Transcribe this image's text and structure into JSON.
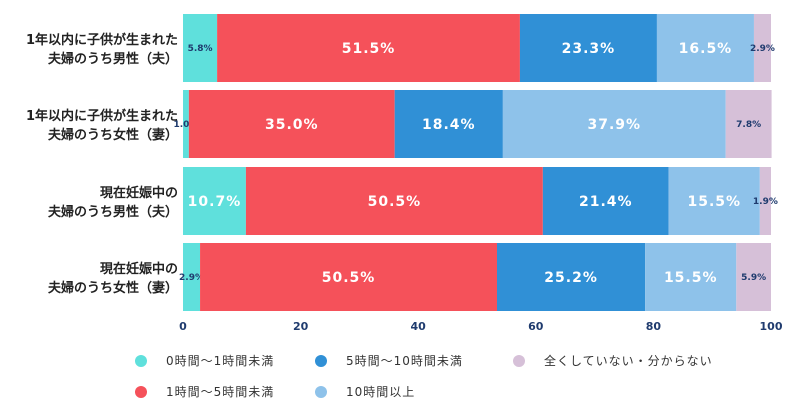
{
  "chart_data": {
    "type": "bar",
    "orientation": "horizontal",
    "stacked": true,
    "categories": [
      [
        "1年以内に子供が生まれた",
        "夫婦のうち男性（夫）"
      ],
      [
        "1年以内に子供が生まれた",
        "夫婦のうち女性（妻）"
      ],
      [
        "現在妊娠中の",
        "夫婦のうち男性（夫）"
      ],
      [
        "現在妊娠中の",
        "夫婦のうち女性（妻）"
      ]
    ],
    "series": [
      {
        "name": "0時間〜1時間未満",
        "color": "#5fe0dc",
        "values": [
          5.8,
          1.0,
          10.7,
          2.9
        ]
      },
      {
        "name": "1時間〜5時間未満",
        "color": "#f5515a",
        "values": [
          51.5,
          35.0,
          50.5,
          50.5
        ]
      },
      {
        "name": "5時間〜10時間未満",
        "color": "#3090d6",
        "values": [
          23.3,
          18.4,
          21.4,
          25.2
        ]
      },
      {
        "name": "10時間以上",
        "color": "#8ec2ea",
        "values": [
          16.5,
          37.9,
          15.5,
          15.5
        ]
      },
      {
        "name": "全くしていない・分からない",
        "color": "#d6c0d8",
        "values": [
          2.9,
          7.8,
          1.9,
          5.9
        ]
      }
    ],
    "data_labels": [
      [
        "5.8%",
        "51.5%",
        "23.3%",
        "16.5%",
        "2.9%"
      ],
      [
        "1.0%",
        "35.0%",
        "18.4%",
        "37.9%",
        "7.8%"
      ],
      [
        "10.7%",
        "50.5%",
        "21.4%",
        "15.5%",
        "1.9%"
      ],
      [
        "2.9%",
        "50.5%",
        "25.2%",
        "15.5%",
        "5.9%"
      ]
    ],
    "xlim": [
      0,
      100
    ],
    "xticks": [
      "0",
      "20",
      "40",
      "60",
      "80",
      "100"
    ],
    "grid": false,
    "legend_placement": "bottom"
  }
}
